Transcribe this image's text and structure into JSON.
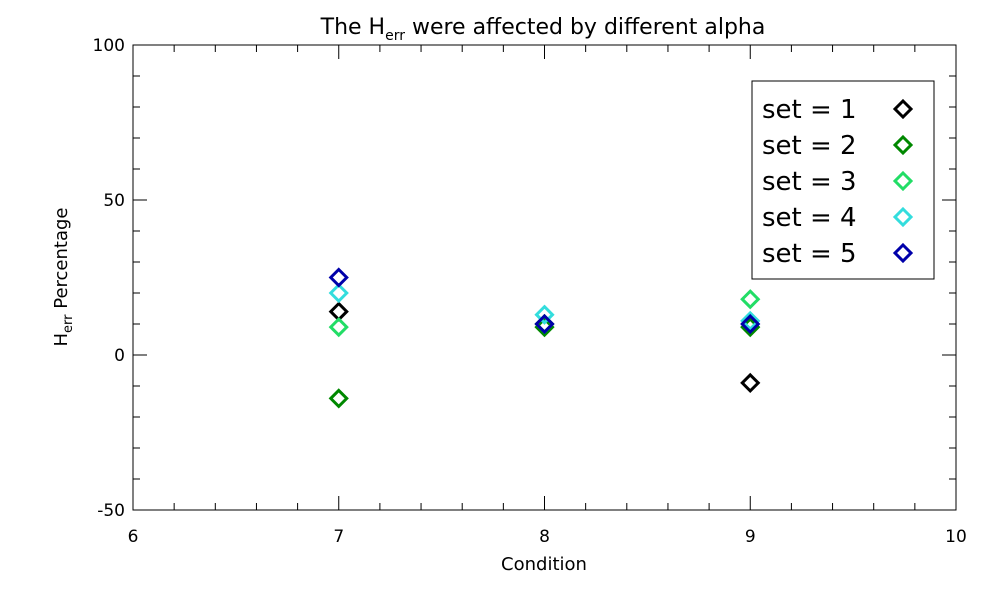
{
  "chart_data": {
    "type": "scatter",
    "title": {
      "prefix": "The H",
      "subscript": "err",
      "suffix": " were affected by different alpha"
    },
    "xlabel": "Condition",
    "ylabel": {
      "prefix": "H",
      "subscript": "err",
      "suffix": " Percentage"
    },
    "xlim": [
      6,
      10
    ],
    "ylim": [
      -50,
      100
    ],
    "xticks": [
      6,
      7,
      8,
      9,
      10
    ],
    "yticks": [
      -50,
      0,
      50,
      100
    ],
    "marker": "diamond",
    "grid": false,
    "legend_position": "top-right",
    "series": [
      {
        "name": "set = 1",
        "color": "#000000",
        "x": [
          7,
          8,
          9
        ],
        "y": [
          14,
          10,
          -9
        ]
      },
      {
        "name": "set = 2",
        "color": "#008800",
        "x": [
          7,
          8,
          9
        ],
        "y": [
          -14,
          9,
          9
        ]
      },
      {
        "name": "set = 3",
        "color": "#22dd66",
        "x": [
          7,
          8,
          9
        ],
        "y": [
          9,
          10,
          18
        ]
      },
      {
        "name": "set = 4",
        "color": "#33dddd",
        "x": [
          7,
          8,
          9
        ],
        "y": [
          20,
          13,
          11
        ]
      },
      {
        "name": "set = 5",
        "color": "#0000aa",
        "x": [
          7,
          8,
          9
        ],
        "y": [
          25,
          10,
          10
        ]
      }
    ]
  }
}
